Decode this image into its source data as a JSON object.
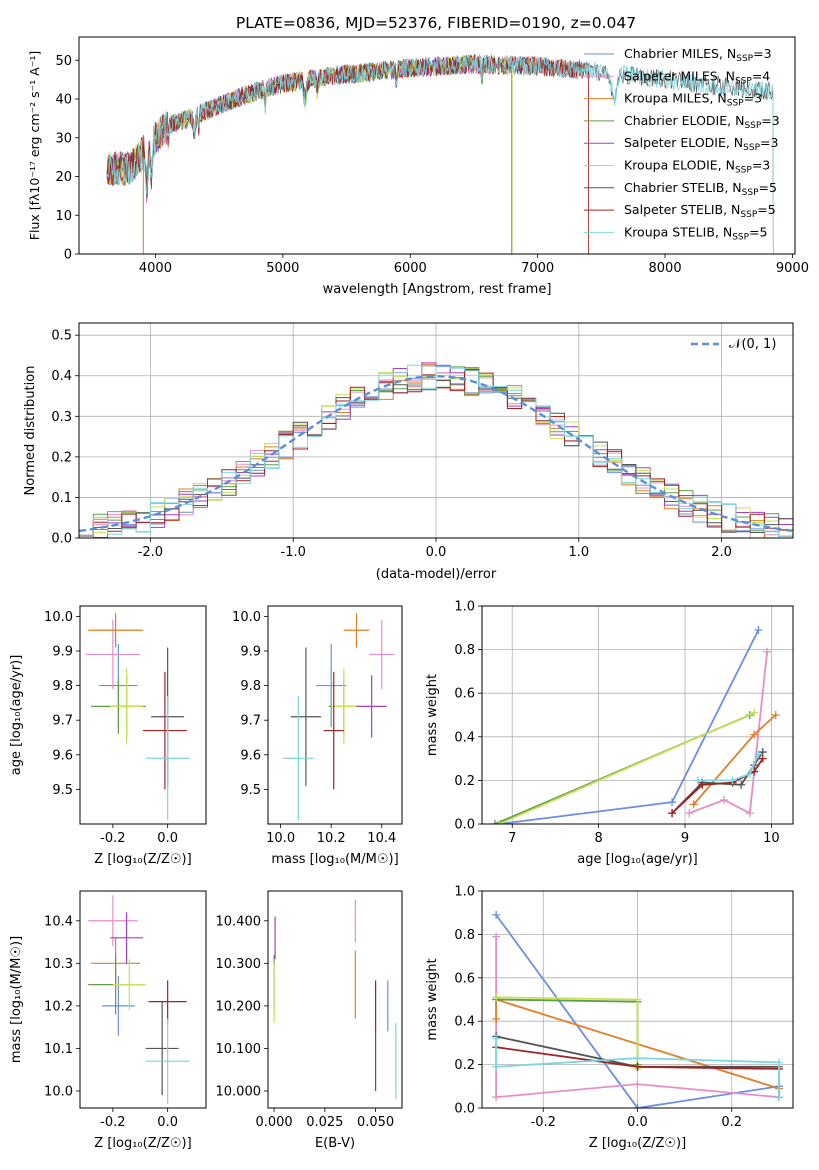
{
  "figure": {
    "title": "PLATE=0836, MJD=52376, FIBERID=0190, z=0.047"
  },
  "palette": {
    "chabrier_miles": "#6a8fe0",
    "salpeter_miles": "#e68fc6",
    "kroupa_miles": "#e0802a",
    "chabrier_elodie": "#5f9e48",
    "salpeter_elodie": "#a63fc2",
    "kroupa_elodie": "#c7e05a",
    "chabrier_stelib": "#555555",
    "salpeter_stelib": "#a02323",
    "kroupa_stelib": "#7fd6de",
    "gaussian": "#5b8fd9",
    "grid": "#b0b0b0"
  },
  "chart_data": [
    {
      "id": "spectrum",
      "type": "line",
      "xlabel": "wavelength [Angstrom, rest frame]",
      "ylabel": "Flux [fλ10⁻¹⁷ erg cm⁻² s⁻¹ A⁻¹]",
      "xlim": [
        3400,
        9020
      ],
      "ylim": [
        0,
        56
      ],
      "xticks": [
        4000,
        5000,
        6000,
        7000,
        8000,
        9000
      ],
      "yticks": [
        0,
        10,
        20,
        30,
        40,
        50
      ],
      "grid": false,
      "legend": "upper right",
      "continuum": [
        [
          3620,
          22
        ],
        [
          3800,
          22
        ],
        [
          3950,
          28
        ],
        [
          4100,
          33
        ],
        [
          4400,
          37
        ],
        [
          4700,
          41
        ],
        [
          5000,
          44
        ],
        [
          5400,
          46
        ],
        [
          6000,
          48
        ],
        [
          6500,
          49
        ],
        [
          7000,
          48.5
        ],
        [
          7500,
          47
        ],
        [
          8000,
          45
        ],
        [
          8500,
          43
        ],
        [
          8850,
          42
        ]
      ],
      "series": [
        {
          "name": "Chabrier MILES, N_SSP=3",
          "color_key": "chabrier_miles",
          "xmax": 7400
        },
        {
          "name": "Salpeter MILES, N_SSP=4",
          "color_key": "salpeter_miles",
          "xmax": 7400
        },
        {
          "name": "Kroupa MILES, N_SSP=3",
          "color_key": "kroupa_miles",
          "xmax": 7400
        },
        {
          "name": "Chabrier ELODIE, N_SSP=3",
          "color_key": "chabrier_elodie",
          "xmax": 6800
        },
        {
          "name": "Salpeter ELODIE, N_SSP=3",
          "color_key": "salpeter_elodie",
          "xmax": 6800
        },
        {
          "name": "Kroupa ELODIE, N_SSP=3",
          "color_key": "kroupa_elodie",
          "xmax": 6800
        },
        {
          "name": "Chabrier STELIB, N_SSP=5",
          "color_key": "chabrier_stelib",
          "xmax": 8850
        },
        {
          "name": "Salpeter STELIB, N_SSP=5",
          "color_key": "salpeter_stelib",
          "xmax": 7400
        },
        {
          "name": "Kroupa STELIB, N_SSP=5",
          "color_key": "kroupa_stelib",
          "xmax": 8850
        }
      ],
      "legend_labels": [
        [
          "Chabrier MILES, N",
          "SSP",
          "=3"
        ],
        [
          "Salpeter MILES, N",
          "SSP",
          "=4"
        ],
        [
          "Kroupa MILES, N",
          "SSP",
          "=3"
        ],
        [
          "Chabrier ELODIE, N",
          "SSP",
          "=3"
        ],
        [
          "Salpeter ELODIE, N",
          "SSP",
          "=3"
        ],
        [
          "Kroupa ELODIE, N",
          "SSP",
          "=3"
        ],
        [
          "Chabrier STELIB, N",
          "SSP",
          "=5"
        ],
        [
          "Salpeter STELIB, N",
          "SSP",
          "=5"
        ],
        [
          "Kroupa STELIB, N",
          "SSP",
          "=5"
        ]
      ]
    },
    {
      "id": "residuals",
      "type": "line",
      "xlabel": "(data-model)/error",
      "ylabel": "Normed distribution",
      "xlim": [
        -2.5,
        2.5
      ],
      "ylim": [
        0,
        0.53
      ],
      "xticks": [
        -2,
        -1,
        0,
        1,
        2
      ],
      "yticks": [
        0.0,
        0.1,
        0.2,
        0.3,
        0.4,
        0.5
      ],
      "grid": true,
      "legend": "upper right",
      "gaussian_label": "𝒩(0, 1)",
      "bin_width": 0.1
    },
    {
      "id": "age_vs_Z",
      "type": "scatter",
      "xlabel": "Z [log₁₀(Z/Z☉)]",
      "ylabel": "age [log₁₀(age/yr)]",
      "xlim": [
        -0.32,
        0.14
      ],
      "ylim": [
        9.4,
        10.03
      ],
      "xticks": [
        -0.2,
        0.0
      ],
      "yticks": [
        9.5,
        9.6,
        9.7,
        9.8,
        9.9,
        10.0
      ],
      "points": [
        {
          "x": -0.18,
          "xerr": 0.07,
          "y": 9.8,
          "yerr": 0.12,
          "color_key": "chabrier_miles"
        },
        {
          "x": -0.2,
          "xerr": 0.1,
          "y": 9.89,
          "yerr": 0.1,
          "color_key": "salpeter_miles"
        },
        {
          "x": -0.19,
          "xerr": 0.1,
          "y": 9.96,
          "yerr": 0.05,
          "color_key": "kroupa_miles"
        },
        {
          "x": -0.18,
          "xerr": 0.1,
          "y": 9.74,
          "yerr": 0.08,
          "color_key": "chabrier_elodie"
        },
        {
          "x": -0.15,
          "xerr": 0.05,
          "y": 9.74,
          "yerr": 0.09,
          "color_key": "salpeter_elodie"
        },
        {
          "x": -0.15,
          "xerr": 0.06,
          "y": 9.74,
          "yerr": 0.11,
          "color_key": "kroupa_elodie"
        },
        {
          "x": 0.0,
          "xerr": 0.06,
          "y": 9.71,
          "yerr": 0.2,
          "color_key": "chabrier_stelib"
        },
        {
          "x": -0.01,
          "xerr": 0.08,
          "y": 9.67,
          "yerr": 0.17,
          "color_key": "salpeter_stelib"
        },
        {
          "x": 0.0,
          "xerr": 0.08,
          "y": 9.59,
          "yerr": 0.18,
          "color_key": "kroupa_stelib"
        }
      ]
    },
    {
      "id": "age_vs_mass",
      "type": "scatter",
      "xlabel": "mass [log₁₀(M/M☉)]",
      "ylabel": "",
      "xlim": [
        9.95,
        10.48
      ],
      "ylim": [
        9.4,
        10.03
      ],
      "xticks": [
        10.0,
        10.2,
        10.4
      ],
      "yticks": [
        9.5,
        9.6,
        9.7,
        9.8,
        9.9,
        10.0
      ],
      "points": [
        {
          "x": 10.2,
          "xerr": 0.06,
          "y": 9.8,
          "yerr": 0.12,
          "color_key": "chabrier_miles"
        },
        {
          "x": 10.4,
          "xerr": 0.05,
          "y": 9.89,
          "yerr": 0.1,
          "color_key": "salpeter_miles"
        },
        {
          "x": 10.3,
          "xerr": 0.05,
          "y": 9.96,
          "yerr": 0.05,
          "color_key": "kroupa_miles"
        },
        {
          "x": 10.25,
          "xerr": 0.06,
          "y": 9.74,
          "yerr": 0.08,
          "color_key": "chabrier_elodie"
        },
        {
          "x": 10.36,
          "xerr": 0.06,
          "y": 9.74,
          "yerr": 0.09,
          "color_key": "salpeter_elodie"
        },
        {
          "x": 10.25,
          "xerr": 0.05,
          "y": 9.74,
          "yerr": 0.11,
          "color_key": "kroupa_elodie"
        },
        {
          "x": 10.1,
          "xerr": 0.06,
          "y": 9.71,
          "yerr": 0.2,
          "color_key": "chabrier_stelib"
        },
        {
          "x": 10.21,
          "xerr": 0.04,
          "y": 9.67,
          "yerr": 0.17,
          "color_key": "salpeter_stelib"
        },
        {
          "x": 10.07,
          "xerr": 0.06,
          "y": 9.59,
          "yerr": 0.18,
          "color_key": "kroupa_stelib"
        }
      ]
    },
    {
      "id": "weight_vs_age",
      "type": "line",
      "xlabel": "age [log₁₀(age/yr)]",
      "ylabel": "mass weight",
      "xlim": [
        6.65,
        10.25
      ],
      "ylim": [
        0,
        1
      ],
      "xticks": [
        7,
        8,
        9,
        10
      ],
      "yticks": [
        0.0,
        0.2,
        0.4,
        0.6,
        0.8,
        1.0
      ],
      "grid": true,
      "series": [
        {
          "color_key": "chabrier_miles",
          "x": [
            6.85,
            8.85,
            9.85
          ],
          "y": [
            0.0,
            0.1,
            0.89
          ]
        },
        {
          "color_key": "salpeter_miles",
          "x": [
            9.05,
            9.45,
            9.75,
            9.95
          ],
          "y": [
            0.05,
            0.11,
            0.05,
            0.79
          ]
        },
        {
          "color_key": "kroupa_miles",
          "x": [
            9.1,
            9.8,
            10.05
          ],
          "y": [
            0.09,
            0.41,
            0.5
          ]
        },
        {
          "color_key": "chabrier_elodie",
          "x": [
            6.8,
            9.75
          ],
          "y": [
            0.0,
            0.5
          ]
        },
        {
          "color_key": "kroupa_elodie",
          "x": [
            6.85,
            9.8
          ],
          "y": [
            0.0,
            0.51
          ]
        },
        {
          "color_key": "chabrier_stelib",
          "x": [
            8.85,
            9.2,
            9.65,
            9.8,
            9.9
          ],
          "y": [
            0.05,
            0.19,
            0.18,
            0.27,
            0.33
          ]
        },
        {
          "color_key": "salpeter_stelib",
          "x": [
            8.85,
            9.2,
            9.55,
            9.8,
            9.9
          ],
          "y": [
            0.05,
            0.18,
            0.19,
            0.24,
            0.3
          ]
        },
        {
          "color_key": "kroupa_stelib",
          "x": [
            9.15,
            9.55,
            9.75,
            9.85
          ],
          "y": [
            0.2,
            0.2,
            0.23,
            0.32
          ]
        }
      ]
    },
    {
      "id": "mass_vs_Z",
      "type": "scatter",
      "xlabel": "Z [log₁₀(Z/Z☉)]",
      "ylabel": "mass [log₁₀(M/M☉)]",
      "xlim": [
        -0.32,
        0.14
      ],
      "ylim": [
        9.96,
        10.47
      ],
      "xticks": [
        -0.2,
        0.0
      ],
      "yticks": [
        10.0,
        10.1,
        10.2,
        10.3,
        10.4
      ],
      "points": [
        {
          "x": -0.18,
          "xerr": 0.06,
          "y": 10.2,
          "yerr": 0.07,
          "color_key": "chabrier_miles"
        },
        {
          "x": -0.2,
          "xerr": 0.09,
          "y": 10.4,
          "yerr": 0.06,
          "color_key": "salpeter_miles"
        },
        {
          "x": -0.19,
          "xerr": 0.09,
          "y": 10.3,
          "yerr": 0.06,
          "color_key": "kroupa_miles"
        },
        {
          "x": -0.19,
          "xerr": 0.1,
          "y": 10.25,
          "yerr": 0.07,
          "color_key": "chabrier_elodie"
        },
        {
          "x": -0.15,
          "xerr": 0.06,
          "y": 10.36,
          "yerr": 0.06,
          "color_key": "salpeter_elodie"
        },
        {
          "x": -0.14,
          "xerr": 0.06,
          "y": 10.25,
          "yerr": 0.06,
          "color_key": "kroupa_elodie"
        },
        {
          "x": -0.02,
          "xerr": 0.06,
          "y": 10.1,
          "yerr": 0.11,
          "color_key": "chabrier_stelib"
        },
        {
          "x": 0.0,
          "xerr": 0.07,
          "y": 10.21,
          "yerr": 0.05,
          "color_key": "salpeter_stelib"
        },
        {
          "x": 0.0,
          "xerr": 0.08,
          "y": 10.07,
          "yerr": 0.1,
          "color_key": "kroupa_stelib"
        }
      ]
    },
    {
      "id": "mass_vs_ebv",
      "type": "scatter",
      "xlabel": "E(B-V)",
      "ylabel": "",
      "xlim": [
        -0.003,
        0.063
      ],
      "ylim": [
        9.96,
        10.47
      ],
      "xticks": [
        0.0,
        0.025,
        0.05
      ],
      "yticks": [
        10.0,
        10.1,
        10.2,
        10.3,
        10.4
      ],
      "points": [
        {
          "x": 0.056,
          "xerr": 0,
          "y": 10.2,
          "yerr": 0.06,
          "color_key": "chabrier_miles"
        },
        {
          "x": 0.04,
          "xerr": 0,
          "y": 10.4,
          "yerr": 0.05,
          "color_key": "salpeter_miles"
        },
        {
          "x": 0.04,
          "xerr": 0,
          "y": 10.25,
          "yerr": 0.08,
          "color_key": "kroupa_miles"
        },
        {
          "x": 0.0,
          "xerr": 0,
          "y": 10.25,
          "yerr": 0.07,
          "color_key": "chabrier_elodie"
        },
        {
          "x": 0.0005,
          "xerr": 0,
          "y": 10.36,
          "yerr": 0.05,
          "color_key": "salpeter_elodie"
        },
        {
          "x": 0.0,
          "xerr": 0,
          "y": 10.23,
          "yerr": 0.07,
          "color_key": "kroupa_elodie"
        },
        {
          "x": 0.05,
          "xerr": 0,
          "y": 10.07,
          "yerr": 0.07,
          "color_key": "chabrier_stelib"
        },
        {
          "x": 0.05,
          "xerr": 0,
          "y": 10.2,
          "yerr": 0.06,
          "color_key": "salpeter_stelib"
        },
        {
          "x": 0.06,
          "xerr": 0,
          "y": 10.07,
          "yerr": 0.09,
          "color_key": "kroupa_stelib"
        }
      ]
    },
    {
      "id": "weight_vs_Z",
      "type": "line",
      "xlabel": "Z [log₁₀(Z/Z☉)]",
      "ylabel": "mass weight",
      "xlim": [
        -0.33,
        0.33
      ],
      "ylim": [
        0,
        1
      ],
      "xticks": [
        -0.2,
        0.0,
        0.2
      ],
      "yticks": [
        0.0,
        0.2,
        0.4,
        0.6,
        0.8,
        1.0
      ],
      "grid": true,
      "series": [
        {
          "color_key": "chabrier_miles",
          "x": [
            -0.3,
            0.0,
            0.3
          ],
          "y": [
            0.89,
            0.0,
            0.1
          ]
        },
        {
          "color_key": "salpeter_miles",
          "x": [
            -0.3,
            -0.3,
            0.0,
            0.3
          ],
          "y": [
            0.79,
            0.05,
            0.11,
            0.05
          ]
        },
        {
          "color_key": "kroupa_miles",
          "x": [
            -0.3,
            -0.3,
            0.3
          ],
          "y": [
            0.41,
            0.5,
            0.09
          ]
        },
        {
          "color_key": "chabrier_elodie",
          "x": [
            -0.3,
            0.0,
            0.0
          ],
          "y": [
            0.5,
            0.49,
            0.2
          ]
        },
        {
          "color_key": "kroupa_elodie",
          "x": [
            -0.3,
            0.0,
            0.0
          ],
          "y": [
            0.51,
            0.5,
            0.18
          ]
        },
        {
          "color_key": "chabrier_stelib",
          "x": [
            -0.3,
            0.0,
            0.3,
            0.3
          ],
          "y": [
            0.33,
            0.19,
            0.19,
            0.05
          ]
        },
        {
          "color_key": "salpeter_stelib",
          "x": [
            -0.3,
            0.0,
            0.3
          ],
          "y": [
            0.28,
            0.19,
            0.18
          ]
        },
        {
          "color_key": "kroupa_stelib",
          "x": [
            -0.3,
            -0.3,
            0.0,
            0.3,
            0.3
          ],
          "y": [
            0.32,
            0.19,
            0.23,
            0.21,
            0.05
          ]
        }
      ]
    }
  ]
}
